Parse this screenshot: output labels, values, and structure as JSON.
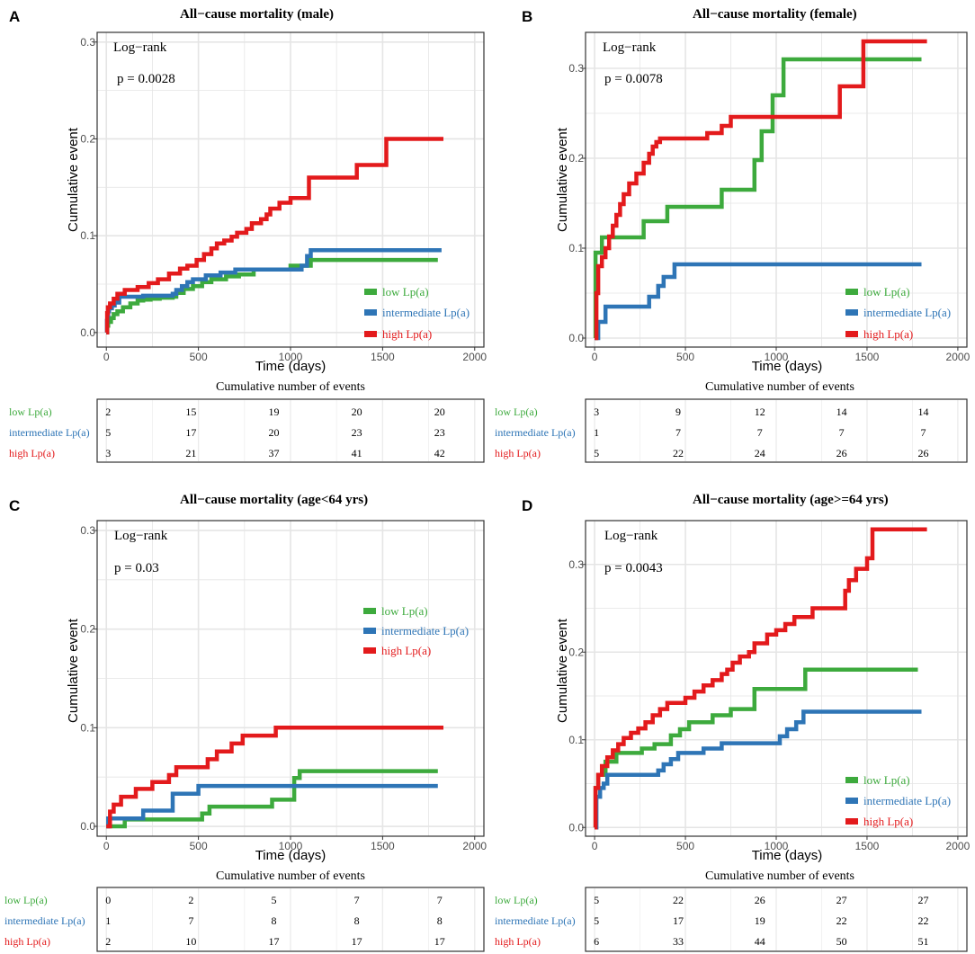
{
  "groups": [
    "low Lp(a)",
    "intermediate Lp(a)",
    "high Lp(a)"
  ],
  "colors": {
    "low": "#3daa3d",
    "intermediate": "#2e75b6",
    "high": "#e31a1c"
  },
  "risk_table_title": "Cumulative number of events",
  "chart_data": [
    {
      "panel": "A",
      "type": "line",
      "title": "All−cause mortality (male)",
      "xlabel": "Time (days)",
      "ylabel": "Cumulative event",
      "xlim": [
        -50,
        2050
      ],
      "ylim": [
        -0.015,
        0.31
      ],
      "xticks": [
        "0",
        "500",
        "1000",
        "1500",
        "2000"
      ],
      "yticks": [
        "0.0",
        "0.1",
        "0.2",
        "0.3"
      ],
      "annotation": {
        "test": "Log−rank",
        "p": "p = 0.0028"
      },
      "legend_position": "right-middle",
      "series": [
        {
          "name": "low Lp(a)",
          "x": [
            0,
            5,
            10,
            25,
            40,
            60,
            90,
            130,
            170,
            200,
            240,
            290,
            360,
            380,
            420,
            470,
            520,
            570,
            650,
            720,
            800,
            1000,
            1110,
            1800
          ],
          "y": [
            0.0,
            0.007,
            0.011,
            0.015,
            0.019,
            0.022,
            0.026,
            0.03,
            0.033,
            0.034,
            0.035,
            0.036,
            0.037,
            0.041,
            0.045,
            0.048,
            0.052,
            0.055,
            0.058,
            0.06,
            0.065,
            0.069,
            0.075,
            0.075
          ]
        },
        {
          "name": "intermediate Lp(a)",
          "x": [
            0,
            3,
            6,
            10,
            15,
            30,
            45,
            70,
            200,
            360,
            380,
            410,
            440,
            470,
            540,
            620,
            700,
            1060,
            1090,
            1110,
            1820
          ],
          "y": [
            0.0,
            0.012,
            0.018,
            0.022,
            0.025,
            0.028,
            0.031,
            0.037,
            0.038,
            0.04,
            0.044,
            0.048,
            0.052,
            0.055,
            0.059,
            0.062,
            0.065,
            0.069,
            0.079,
            0.085,
            0.085
          ]
        },
        {
          "name": "high Lp(a)",
          "x": [
            0,
            4,
            8,
            20,
            40,
            60,
            100,
            170,
            230,
            280,
            340,
            400,
            440,
            490,
            530,
            570,
            600,
            640,
            680,
            710,
            760,
            790,
            840,
            870,
            890,
            940,
            1000,
            1100,
            1360,
            1520,
            1830
          ],
          "y": [
            0.0,
            0.02,
            0.026,
            0.03,
            0.035,
            0.04,
            0.044,
            0.047,
            0.051,
            0.055,
            0.061,
            0.066,
            0.069,
            0.075,
            0.081,
            0.087,
            0.092,
            0.095,
            0.099,
            0.103,
            0.107,
            0.113,
            0.117,
            0.122,
            0.128,
            0.134,
            0.139,
            0.16,
            0.173,
            0.2,
            0.2
          ]
        }
      ],
      "risk_table": {
        "low Lp(a)": [
          "2",
          "15",
          "19",
          "20",
          "20"
        ],
        "intermediate Lp(a)": [
          "5",
          "17",
          "20",
          "23",
          "23"
        ],
        "high Lp(a)": [
          "3",
          "21",
          "37",
          "41",
          "42"
        ]
      }
    },
    {
      "panel": "B",
      "type": "line",
      "title": "All−cause mortality (female)",
      "xlabel": "Time (days)",
      "ylabel": "Cumulative event",
      "xlim": [
        -50,
        2050
      ],
      "ylim": [
        -0.01,
        0.34
      ],
      "xticks": [
        "0",
        "500",
        "1000",
        "1500",
        "2000"
      ],
      "yticks": [
        "0.0",
        "0.1",
        "0.2",
        "0.3"
      ],
      "annotation": {
        "test": "Log−rank",
        "p": "p = 0.0078"
      },
      "legend_position": "bottom-right",
      "series": [
        {
          "name": "low Lp(a)",
          "x": [
            0,
            5,
            40,
            270,
            400,
            700,
            880,
            920,
            980,
            1040,
            1800
          ],
          "y": [
            0.0,
            0.095,
            0.112,
            0.13,
            0.146,
            0.165,
            0.198,
            0.23,
            0.27,
            0.31,
            0.31
          ]
        },
        {
          "name": "intermediate Lp(a)",
          "x": [
            0,
            20,
            60,
            300,
            350,
            380,
            440,
            1800
          ],
          "y": [
            0.0,
            0.018,
            0.035,
            0.046,
            0.058,
            0.068,
            0.082,
            0.082
          ]
        },
        {
          "name": "high Lp(a)",
          "x": [
            0,
            10,
            20,
            40,
            60,
            80,
            100,
            120,
            140,
            160,
            190,
            230,
            270,
            300,
            320,
            340,
            360,
            390,
            420,
            620,
            700,
            750,
            1350,
            1480,
            1830
          ],
          "y": [
            0.0,
            0.05,
            0.08,
            0.09,
            0.1,
            0.113,
            0.125,
            0.137,
            0.149,
            0.16,
            0.172,
            0.183,
            0.195,
            0.205,
            0.213,
            0.218,
            0.222,
            0.222,
            0.222,
            0.228,
            0.236,
            0.246,
            0.28,
            0.33,
            0.33
          ]
        }
      ],
      "risk_table": {
        "low Lp(a)": [
          "3",
          "9",
          "12",
          "14",
          "14"
        ],
        "intermediate Lp(a)": [
          "1",
          "7",
          "7",
          "7",
          "7"
        ],
        "high Lp(a)": [
          "5",
          "22",
          "24",
          "26",
          "26"
        ]
      }
    },
    {
      "panel": "C",
      "type": "line",
      "title": "All−cause mortality (age<64 yrs)",
      "xlabel": "Time (days)",
      "ylabel": "Cumulative event",
      "xlim": [
        -50,
        2050
      ],
      "ylim": [
        -0.01,
        0.31
      ],
      "xticks": [
        "0",
        "500",
        "1000",
        "1500",
        "2000"
      ],
      "yticks": [
        "0.0",
        "0.1",
        "0.2",
        "0.3"
      ],
      "annotation": {
        "test": "Log−rank",
        "p": "p = 0.03"
      },
      "legend_position": "right",
      "series": [
        {
          "name": "low Lp(a)",
          "x": [
            0,
            5,
            100,
            520,
            560,
            900,
            1020,
            1050,
            1800
          ],
          "y": [
            0.0,
            0.0,
            0.007,
            0.013,
            0.02,
            0.027,
            0.049,
            0.056,
            0.056
          ]
        },
        {
          "name": "intermediate Lp(a)",
          "x": [
            0,
            10,
            200,
            360,
            500,
            1800
          ],
          "y": [
            0.0,
            0.008,
            0.016,
            0.033,
            0.041,
            0.041
          ]
        },
        {
          "name": "high Lp(a)",
          "x": [
            0,
            20,
            40,
            80,
            160,
            250,
            340,
            380,
            550,
            600,
            680,
            740,
            920,
            1830
          ],
          "y": [
            0.0,
            0.015,
            0.022,
            0.03,
            0.038,
            0.045,
            0.052,
            0.06,
            0.068,
            0.076,
            0.084,
            0.092,
            0.1,
            0.1
          ]
        }
      ],
      "risk_table": {
        "low Lp(a)": [
          "0",
          "2",
          "5",
          "7",
          "7"
        ],
        "intermediate Lp(a)": [
          "1",
          "7",
          "8",
          "8",
          "8"
        ],
        "high Lp(a)": [
          "2",
          "10",
          "17",
          "17",
          "17"
        ]
      }
    },
    {
      "panel": "D",
      "type": "line",
      "title": "All−cause mortality (age>=64 yrs)",
      "xlabel": "Time (days)",
      "ylabel": "Cumulative event",
      "xlim": [
        -50,
        2050
      ],
      "ylim": [
        -0.01,
        0.35
      ],
      "xticks": [
        "0",
        "500",
        "1000",
        "1500",
        "2000"
      ],
      "yticks": [
        "0.0",
        "0.1",
        "0.2",
        "0.3"
      ],
      "annotation": {
        "test": "Log−rank",
        "p": "p = 0.0043"
      },
      "legend_position": "bottom-right",
      "series": [
        {
          "name": "low Lp(a)",
          "x": [
            0,
            5,
            20,
            60,
            120,
            260,
            330,
            420,
            470,
            520,
            650,
            750,
            880,
            1160,
            1780
          ],
          "y": [
            0.0,
            0.045,
            0.06,
            0.075,
            0.085,
            0.09,
            0.095,
            0.105,
            0.112,
            0.12,
            0.128,
            0.135,
            0.158,
            0.18,
            0.18
          ]
        },
        {
          "name": "intermediate Lp(a)",
          "x": [
            0,
            10,
            30,
            50,
            70,
            350,
            380,
            420,
            460,
            600,
            700,
            1020,
            1060,
            1110,
            1150,
            1800
          ],
          "y": [
            0.0,
            0.035,
            0.045,
            0.05,
            0.06,
            0.065,
            0.072,
            0.078,
            0.085,
            0.09,
            0.096,
            0.104,
            0.112,
            0.12,
            0.132,
            0.132
          ]
        },
        {
          "name": "high Lp(a)",
          "x": [
            0,
            5,
            20,
            40,
            70,
            100,
            130,
            160,
            200,
            240,
            280,
            320,
            360,
            400,
            500,
            550,
            600,
            650,
            700,
            730,
            760,
            800,
            850,
            880,
            950,
            1000,
            1050,
            1100,
            1200,
            1380,
            1400,
            1440,
            1500,
            1530,
            1830
          ],
          "y": [
            0.0,
            0.045,
            0.06,
            0.07,
            0.08,
            0.088,
            0.095,
            0.102,
            0.108,
            0.113,
            0.12,
            0.128,
            0.135,
            0.142,
            0.148,
            0.155,
            0.162,
            0.168,
            0.175,
            0.18,
            0.188,
            0.195,
            0.2,
            0.21,
            0.22,
            0.225,
            0.232,
            0.24,
            0.25,
            0.27,
            0.282,
            0.295,
            0.307,
            0.34,
            0.34
          ]
        }
      ],
      "risk_table": {
        "low Lp(a)": [
          "5",
          "22",
          "26",
          "27",
          "27"
        ],
        "intermediate Lp(a)": [
          "5",
          "17",
          "19",
          "22",
          "22"
        ],
        "high Lp(a)": [
          "6",
          "33",
          "44",
          "50",
          "51"
        ]
      }
    }
  ]
}
